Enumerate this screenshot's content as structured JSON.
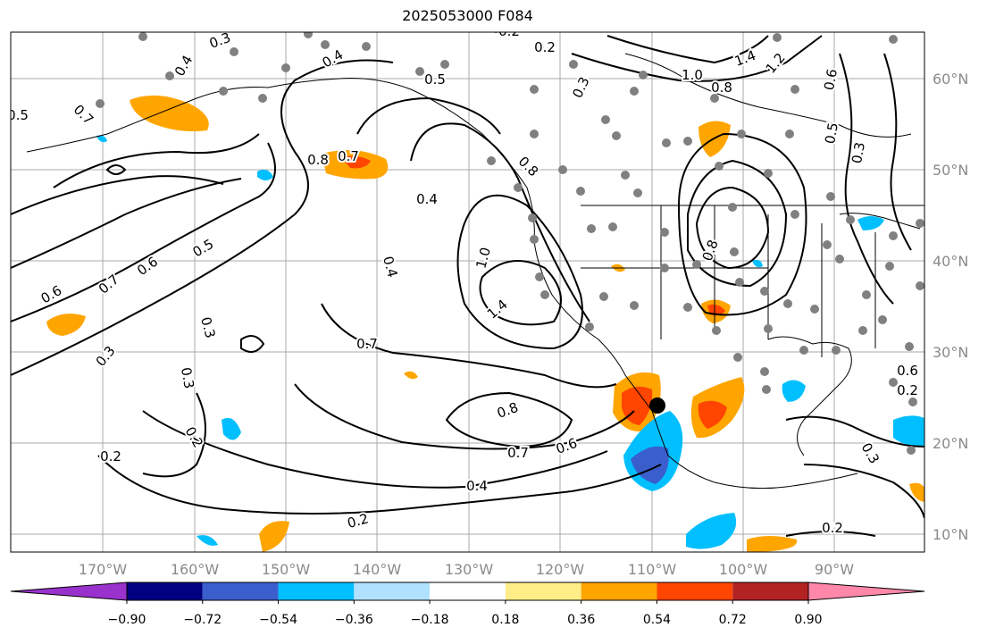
{
  "title": "2025053000 F084",
  "lon_labels": [
    "170°W",
    "160°W",
    "150°W",
    "140°W",
    "130°W",
    "120°W",
    "110°W",
    "100°W",
    "90°W"
  ],
  "lat_labels": [
    "60°N",
    "50°N",
    "40°N",
    "30°N",
    "20°N",
    "10°N"
  ],
  "contour_labels": [
    "0.3",
    "0.4",
    "0.4",
    "0.5",
    "0.2",
    "0.2",
    "0.3",
    "0.5",
    "0.7",
    "0.8",
    "0.7",
    "0.4",
    "0.4",
    "0.6",
    "0.7",
    "0.5",
    "0.6",
    "0.3",
    "0.3",
    "0.3",
    "0.2",
    "0.2",
    "0.7",
    "0.8",
    "0.7",
    "0.6",
    "0.4",
    "0.2",
    "1.0",
    "1.4",
    "0.8",
    "1.0",
    "0.8",
    "1.4",
    "1.2",
    "0.6",
    "0.5",
    "0.3",
    "0.2",
    "0.3",
    "0.2",
    "0.3",
    "0.6",
    "0.8",
    "0.2"
  ],
  "colorbar": {
    "colors": [
      "#9932cc",
      "#000080",
      "#3a5fcd",
      "#00bfff",
      "#b0e2ff",
      "#ffffff",
      "#ffee88",
      "#ffa500",
      "#ff4500",
      "#b22222",
      "#ff88aa"
    ],
    "tick_labels": [
      "−0.90",
      "−0.72",
      "−0.54",
      "−0.36",
      "−0.18",
      "0.18",
      "0.36",
      "0.54",
      "0.72",
      "0.90"
    ]
  },
  "colors": {
    "contour": "#000000",
    "grid": "#aaaaaa",
    "station": "#808080",
    "orange": "#ffa500",
    "red": "#ff4500",
    "lightblue": "#00bfff",
    "blue": "#3a5fcd"
  }
}
